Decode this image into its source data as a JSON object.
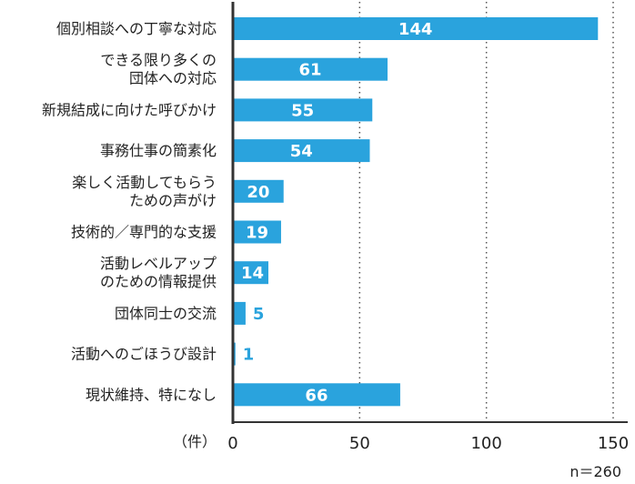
{
  "chart_data": {
    "type": "bar",
    "orientation": "horizontal",
    "categories": [
      [
        "個別相談への丁寧な対応"
      ],
      [
        "できる限り多くの",
        "団体への対応"
      ],
      [
        "新規結成に向けた呼びかけ"
      ],
      [
        "事務仕事の簡素化"
      ],
      [
        "楽しく活動してもらう",
        "ための声がけ"
      ],
      [
        "技術的／専門的な支援"
      ],
      [
        "活動レベルアップ",
        "のための情報提供"
      ],
      [
        "団体同士の交流"
      ],
      [
        "活動へのごほうび設計"
      ],
      [
        "現状維持、特になし"
      ]
    ],
    "values": [
      144,
      61,
      55,
      54,
      20,
      19,
      14,
      5,
      1,
      66
    ],
    "value_labels": [
      "144",
      "61",
      "55",
      "54",
      "20",
      "19",
      "14",
      "5",
      "1",
      "66"
    ],
    "xlim": [
      0,
      150
    ],
    "xticks": [
      "0",
      "50",
      "100",
      "150"
    ],
    "unit_label": "（件）",
    "sample_size": "n＝260",
    "grid": "dotted vertical lines at 50, 100, 150",
    "colors": {
      "bar": "#2aa3dd",
      "axis": "#333333",
      "grid": "#555555",
      "inside_label": "#ffffff"
    }
  }
}
